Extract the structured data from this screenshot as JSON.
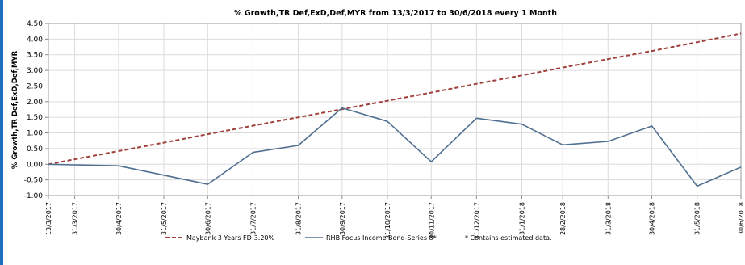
{
  "chart_data": {
    "type": "line",
    "title": "% Growth,TR Def,ExD,Def,MYR from 13/3/2017 to 30/6/2018 every 1 Month",
    "ylabel": "% Growth,TR Def,ExD,Def,MYR",
    "xlabel": "",
    "ylim": [
      -1.0,
      4.5
    ],
    "yticks": [
      "4.50",
      "4.00",
      "3.50",
      "3.00",
      "2.50",
      "2.00",
      "1.50",
      "1.00",
      "0.50",
      "0.00",
      "-0.50",
      "-1.00"
    ],
    "grid": true,
    "legend_position": "bottom",
    "categories": [
      "13/3/2017",
      "31/3/2017",
      "30/4/2017",
      "31/5/2017",
      "30/6/2017",
      "31/7/2017",
      "31/8/2017",
      "30/9/2017",
      "31/10/2017",
      "30/11/2017",
      "31/12/2017",
      "31/1/2018",
      "28/2/2018",
      "31/3/2018",
      "30/4/2018",
      "31/5/2018",
      "30/6/2018"
    ],
    "x_days": [
      0,
      18,
      48,
      79,
      109,
      140,
      171,
      201,
      232,
      262,
      293,
      324,
      352,
      383,
      413,
      444,
      474
    ],
    "series": [
      {
        "name": "Maybank 3 Years FD-3.20%",
        "color": "#a0403c",
        "dash": true,
        "values": [
          0.0,
          0.16,
          0.42,
          0.69,
          0.96,
          1.23,
          1.5,
          1.76,
          2.03,
          2.29,
          2.57,
          2.84,
          3.09,
          3.36,
          3.62,
          3.9,
          4.18
        ]
      },
      {
        "name": "RHB Focus Income Bond-Series 8*",
        "color": "#4f6f91",
        "dash": false,
        "values": [
          0.0,
          -0.02,
          -0.05,
          -0.35,
          -0.64,
          0.38,
          0.6,
          1.8,
          1.37,
          0.08,
          1.47,
          1.28,
          0.62,
          0.73,
          1.22,
          -0.7,
          -0.09
        ]
      }
    ],
    "footnote": "* Contains estimated data."
  }
}
